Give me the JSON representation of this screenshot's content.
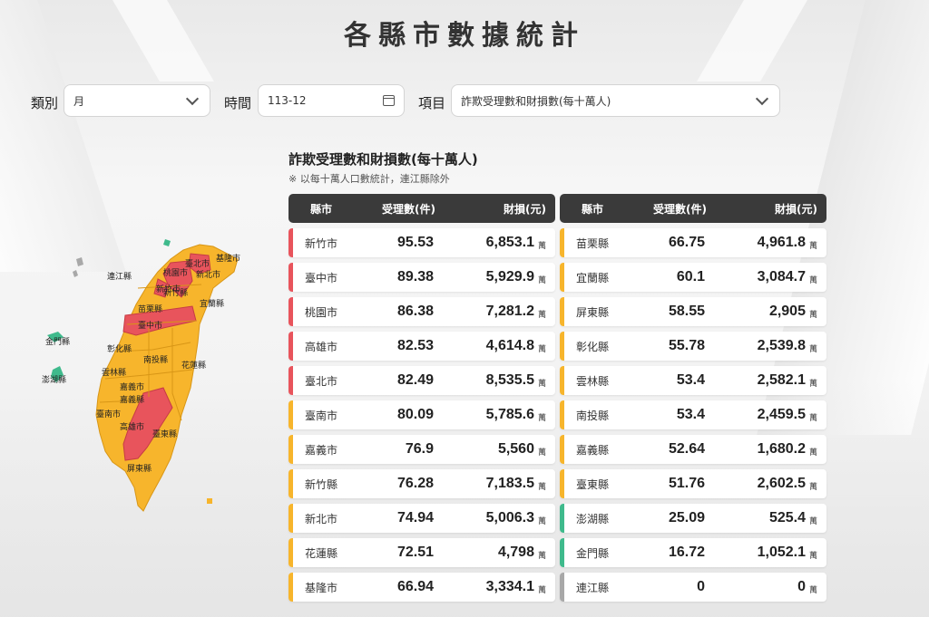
{
  "title": "各縣市數據統計",
  "filters": {
    "category": {
      "label": "類別",
      "value": "月"
    },
    "time": {
      "label": "時間",
      "value": "113-12"
    },
    "item": {
      "label": "項目",
      "value": "詐欺受理數和財損數(每十萬人)"
    }
  },
  "section": {
    "title": "詐欺受理數和財損數(每十萬人)",
    "note": "※ 以每十萬人口數統計，連江縣除外"
  },
  "table_headers": {
    "county": "縣市",
    "count": "受理數(件)",
    "loss": "財損(元)"
  },
  "unit": "萬",
  "colors": {
    "red": "#e8545c",
    "orange": "#f7b52c",
    "green": "#3fba8c",
    "gray": "#a8a8a8",
    "header": "#3a3a3a"
  },
  "left_rows": [
    {
      "name": "新竹市",
      "count": "95.53",
      "loss": "6,853.1",
      "level": "red"
    },
    {
      "name": "臺中市",
      "count": "89.38",
      "loss": "5,929.9",
      "level": "red"
    },
    {
      "name": "桃園市",
      "count": "86.38",
      "loss": "7,281.2",
      "level": "red"
    },
    {
      "name": "高雄市",
      "count": "82.53",
      "loss": "4,614.8",
      "level": "red"
    },
    {
      "name": "臺北市",
      "count": "82.49",
      "loss": "8,535.5",
      "level": "red"
    },
    {
      "name": "臺南市",
      "count": "80.09",
      "loss": "5,785.6",
      "level": "orange"
    },
    {
      "name": "嘉義市",
      "count": "76.9",
      "loss": "5,560",
      "level": "orange"
    },
    {
      "name": "新竹縣",
      "count": "76.28",
      "loss": "7,183.5",
      "level": "orange"
    },
    {
      "name": "新北市",
      "count": "74.94",
      "loss": "5,006.3",
      "level": "orange"
    },
    {
      "name": "花蓮縣",
      "count": "72.51",
      "loss": "4,798",
      "level": "orange"
    },
    {
      "name": "基隆市",
      "count": "66.94",
      "loss": "3,334.1",
      "level": "orange"
    }
  ],
  "right_rows": [
    {
      "name": "苗栗縣",
      "count": "66.75",
      "loss": "4,961.8",
      "level": "orange"
    },
    {
      "name": "宜蘭縣",
      "count": "60.1",
      "loss": "3,084.7",
      "level": "orange"
    },
    {
      "name": "屏東縣",
      "count": "58.55",
      "loss": "2,905",
      "level": "orange"
    },
    {
      "name": "彰化縣",
      "count": "55.78",
      "loss": "2,539.8",
      "level": "orange"
    },
    {
      "name": "雲林縣",
      "count": "53.4",
      "loss": "2,582.1",
      "level": "orange"
    },
    {
      "name": "南投縣",
      "count": "53.4",
      "loss": "2,459.5",
      "level": "orange"
    },
    {
      "name": "嘉義縣",
      "count": "52.64",
      "loss": "1,680.2",
      "level": "orange"
    },
    {
      "name": "臺東縣",
      "count": "51.76",
      "loss": "2,602.5",
      "level": "orange"
    },
    {
      "name": "澎湖縣",
      "count": "25.09",
      "loss": "525.4",
      "level": "green"
    },
    {
      "name": "金門縣",
      "count": "16.72",
      "loss": "1,052.1",
      "level": "green"
    },
    {
      "name": "連江縣",
      "count": "0",
      "loss": "0",
      "level": "gray"
    }
  ],
  "map_labels": [
    "基隆市",
    "臺北市",
    "新北市",
    "桃園市",
    "新竹市",
    "新竹縣",
    "宜蘭縣",
    "苗栗縣",
    "臺中市",
    "彰化縣",
    "南投縣",
    "花蓮縣",
    "雲林縣",
    "嘉義市",
    "嘉義縣",
    "臺南市",
    "高雄市",
    "臺東縣",
    "屏東縣",
    "連江縣",
    "金門縣",
    "澎湖縣"
  ]
}
